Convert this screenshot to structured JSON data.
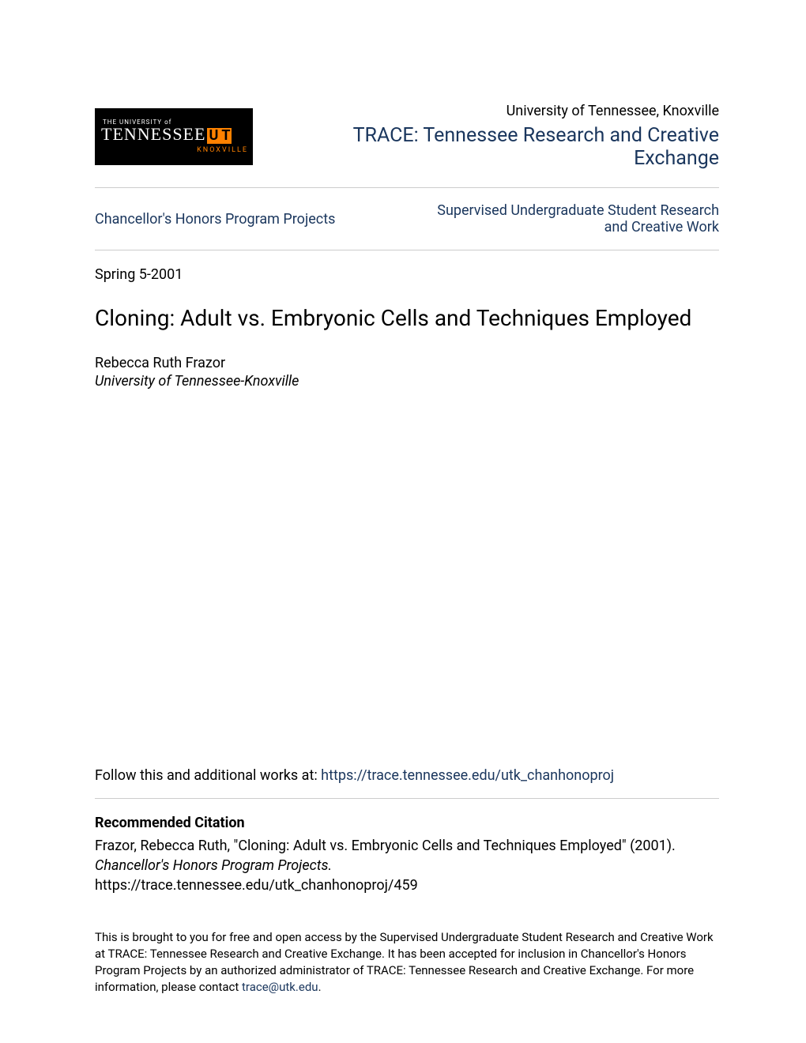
{
  "logo": {
    "line1": "THE UNIVERSITY of",
    "tennessee": "TENNESSEE",
    "knoxville": "KNOXVILLE"
  },
  "header": {
    "university_name": "University of Tennessee, Knoxville",
    "trace_title_line1": "TRACE: Tennessee Research and Creative",
    "trace_title_line2": "Exchange"
  },
  "nav": {
    "left": "Chancellor's Honors Program Projects",
    "right_line1": "Supervised Undergraduate Student Research",
    "right_line2": "and Creative Work"
  },
  "date": "Spring 5-2001",
  "title": "Cloning: Adult vs. Embryonic Cells and Techniques Employed",
  "author": {
    "name": "Rebecca Ruth Frazor",
    "affiliation": "University of Tennessee-Knoxville"
  },
  "follow": {
    "prefix": "Follow this and additional works at: ",
    "url": "https://trace.tennessee.edu/utk_chanhonoproj"
  },
  "citation": {
    "heading": "Recommended Citation",
    "text_part1": "Frazor, Rebecca Ruth, \"Cloning: Adult vs. Embryonic Cells and Techniques Employed\" (2001). ",
    "text_italic": "Chancellor's Honors Program Projects.",
    "url": "https://trace.tennessee.edu/utk_chanhonoproj/459"
  },
  "footer": {
    "text_part1": "This is brought to you for free and open access by the Supervised Undergraduate Student Research and Creative Work at TRACE: Tennessee Research and Creative Exchange. It has been accepted for inclusion in Chancellor's Honors Program Projects by an authorized administrator of TRACE: Tennessee Research and Creative Exchange. For more information, please contact ",
    "email": "trace@utk.edu",
    "text_part2": "."
  },
  "colors": {
    "link": "#1a365d",
    "orange": "#ff8200",
    "text": "#000000",
    "divider": "#cccccc",
    "background": "#ffffff"
  },
  "typography": {
    "body_fontsize": 18,
    "title_fontsize": 28,
    "trace_fontsize": 25,
    "footer_fontsize": 15
  }
}
